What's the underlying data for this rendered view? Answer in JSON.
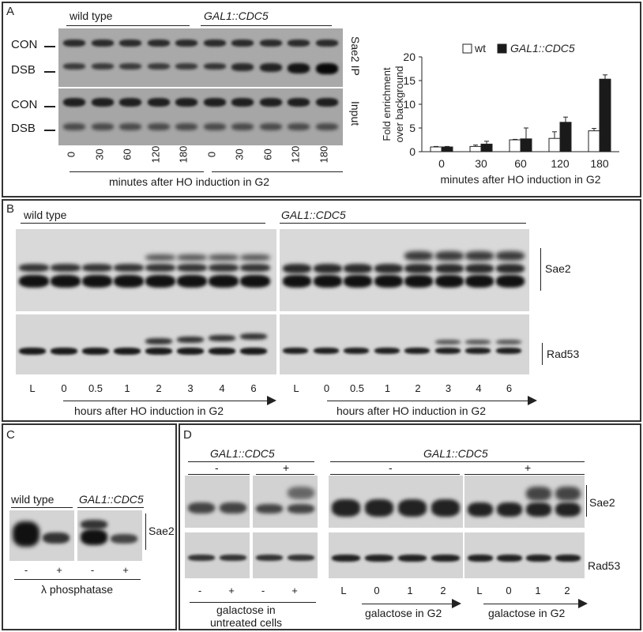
{
  "panels": {
    "A": {
      "label": "A",
      "wild_type": "wild type",
      "gal1": "GAL1::CDC5",
      "con": "CON",
      "dsb": "DSB",
      "con2": "CON",
      "dsb2": "DSB",
      "ip_label": "Sae2 IP",
      "input_label": "Input",
      "lanes": [
        "0",
        "30",
        "60",
        "120",
        "180",
        "0",
        "30",
        "60",
        "120",
        "180"
      ],
      "xcaption": "minutes after HO induction in G2"
    },
    "B": {
      "label": "B",
      "wild_type": "wild type",
      "gal1": "GAL1::CDC5",
      "sae2": "Sae2",
      "rad53": "Rad53",
      "lanes_left": [
        "L",
        "0",
        "0.5",
        "1",
        "2",
        "3",
        "4",
        "6"
      ],
      "lanes_right": [
        "L",
        "0",
        "0.5",
        "1",
        "2",
        "3",
        "4",
        "6"
      ],
      "caption_left": "hours after HO induction in G2",
      "caption_right": "hours after HO induction in G2"
    },
    "C": {
      "label": "C",
      "wild_type": "wild type",
      "gal1": "GAL1::CDC5",
      "sae2": "Sae2",
      "lanes": [
        "-",
        "+",
        "-",
        "+"
      ],
      "caption": "λ phosphatase"
    },
    "D": {
      "label": "D",
      "gal1_left": "GAL1::CDC5",
      "gal1_right": "GAL1::CDC5",
      "minus1": "-",
      "plus1": "+",
      "minus2": "-",
      "plus2": "+",
      "sae2": "Sae2",
      "rad53": "Rad53",
      "lanes_left": [
        "-",
        "+",
        "-",
        "+"
      ],
      "caption_left_1": "galactose in",
      "caption_left_2": "untreated cells",
      "lanes_mid": [
        "L",
        "0",
        "1",
        "2"
      ],
      "lanes_right": [
        "L",
        "0",
        "1",
        "2"
      ],
      "caption_mid": "galactose in G2",
      "caption_right": "galactose in G2"
    }
  },
  "chart_data": {
    "type": "bar",
    "categories": [
      "0",
      "30",
      "60",
      "120",
      "180"
    ],
    "series": [
      {
        "name": "wt",
        "values": [
          1.0,
          1.1,
          2.5,
          2.8,
          4.4
        ],
        "errors": [
          0.1,
          0.3,
          0.1,
          1.4,
          0.5
        ],
        "color": "#ffffff"
      },
      {
        "name": "GAL1::CDC5",
        "values": [
          1.0,
          1.6,
          2.7,
          6.2,
          15.3
        ],
        "errors": [
          0.1,
          0.6,
          2.3,
          1.1,
          0.9
        ],
        "color": "#1a1a1a"
      }
    ],
    "ylabel": "Fold enrichment over background",
    "xlabel": "minutes after HO induction in G2",
    "ylim": [
      0,
      20
    ],
    "yticks": [
      "0",
      "5",
      "10",
      "15",
      "20"
    ],
    "legend": "top-right"
  }
}
